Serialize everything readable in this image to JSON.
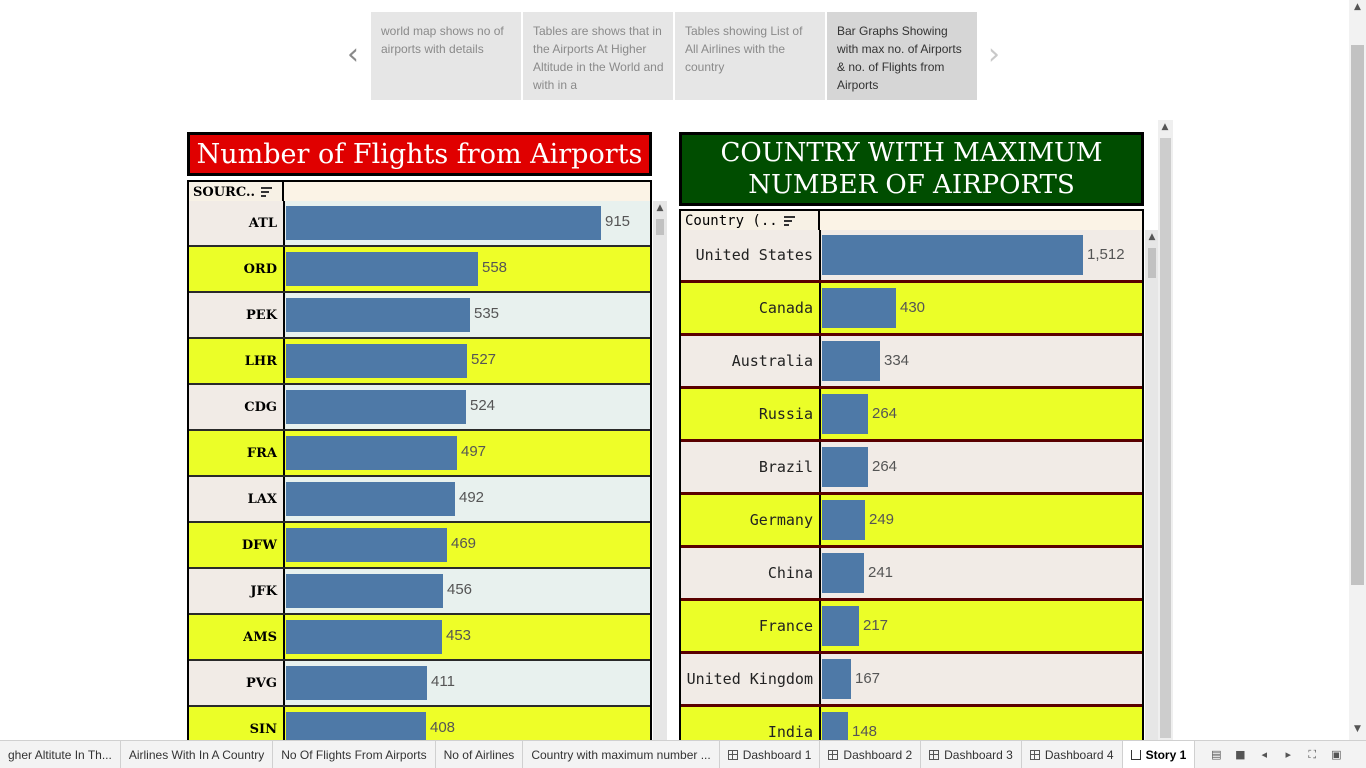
{
  "story_nav": {
    "prev_icon": "chevron-left-icon",
    "next_icon": "chevron-right-icon",
    "points": [
      {
        "caption": "world map shows no of airports with details"
      },
      {
        "caption": "Tables are shows that in the Airports At Higher Altitude in the World and with in a"
      },
      {
        "caption": "Tables showing List of All Airlines with the country"
      },
      {
        "caption": "Bar Graphs Showing with max no. of Airports & no. of Flights from Airports"
      }
    ]
  },
  "left_chart": {
    "title": "Number of Flights from Airports",
    "header_label": "SOURC..",
    "colors": {
      "bar": "#4e79a7",
      "row_a": "#f1ebe6",
      "row_b": "#ebfe28",
      "cell_a": "#e8f1ee",
      "cell_b": "#eefe28"
    },
    "rows": [
      {
        "label": "ATL",
        "value": "915"
      },
      {
        "label": "ORD",
        "value": "558"
      },
      {
        "label": "PEK",
        "value": "535"
      },
      {
        "label": "LHR",
        "value": "527"
      },
      {
        "label": "CDG",
        "value": "524"
      },
      {
        "label": "FRA",
        "value": "497"
      },
      {
        "label": "LAX",
        "value": "492"
      },
      {
        "label": "DFW",
        "value": "469"
      },
      {
        "label": "JFK",
        "value": "456"
      },
      {
        "label": "AMS",
        "value": "453"
      },
      {
        "label": "PVG",
        "value": "411"
      },
      {
        "label": "SIN",
        "value": "408"
      }
    ]
  },
  "right_chart": {
    "title": "Country with maximum number of Airports",
    "header_label": "Country (..",
    "colors": {
      "bar": "#4e79a7",
      "row_a": "#f1ebe6",
      "row_b": "#ebfe28"
    },
    "rows": [
      {
        "label": "United States",
        "value": "1,512"
      },
      {
        "label": "Canada",
        "value": "430"
      },
      {
        "label": "Australia",
        "value": "334"
      },
      {
        "label": "Russia",
        "value": "264"
      },
      {
        "label": "Brazil",
        "value": "264"
      },
      {
        "label": "Germany",
        "value": "249"
      },
      {
        "label": "China",
        "value": "241"
      },
      {
        "label": "France",
        "value": "217"
      },
      {
        "label": "United Kingdom",
        "value": "167"
      },
      {
        "label": "India",
        "value": "148"
      }
    ]
  },
  "tabs": [
    {
      "label": "gher Altitute In Th...",
      "icon": ""
    },
    {
      "label": "Airlines With In A Country",
      "icon": ""
    },
    {
      "label": "No Of Flights From Airports",
      "icon": ""
    },
    {
      "label": "No of Airlines",
      "icon": ""
    },
    {
      "label": "Country with maximum number ...",
      "icon": ""
    },
    {
      "label": "Dashboard 1",
      "icon": "dashboard-icon"
    },
    {
      "label": "Dashboard 2",
      "icon": "dashboard-icon"
    },
    {
      "label": "Dashboard 3",
      "icon": "dashboard-icon"
    },
    {
      "label": "Dashboard 4",
      "icon": "dashboard-icon"
    },
    {
      "label": "Story 1",
      "icon": "story-icon",
      "active": true
    }
  ],
  "tab_tools": [
    "show-sheet-sorter-icon",
    "show-filmstrip-icon",
    "prev-sheet-icon",
    "next-sheet-icon",
    "fullscreen-icon",
    "present-icon"
  ]
}
